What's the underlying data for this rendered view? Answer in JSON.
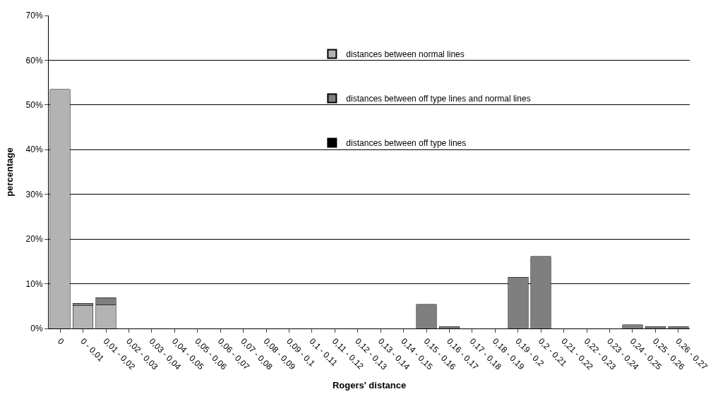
{
  "chart_data": {
    "type": "bar",
    "stacked": true,
    "xlabel": "Rogers' distance",
    "ylabel": "percentage",
    "categories": [
      "0",
      "0 - 0,01",
      "0,01 - 0,02",
      "0,02 - 0,03",
      "0,03 - 0,04",
      "0,04 - 0,05",
      "0,05 - 0,06",
      "0,06 - 0,07",
      "0,07 - 0,08",
      "0,08 - 0,09",
      "0,09 - 0,1",
      "0,1 - 0,11",
      "0,11 - 0,12",
      "0,12 - 0,13",
      "0,13 - 0,14",
      "0,14 - 0,15",
      "0,15 - 0,16",
      "0,16 - 0,17",
      "0,17 - 0,18",
      "0,18 - 0,19",
      "0,19 - 0,2",
      "0,2 - 0,21",
      "0,21 - 0,22",
      "0,22 - 0,23",
      "0,23 - 0,24",
      "0,24 - 0,25",
      "0,25 - 0,26",
      "0,26 - 0,27"
    ],
    "series": [
      {
        "name": "distances between normal lines",
        "color": "#b3b3b3",
        "values": [
          53.5,
          5.1,
          5.3,
          0,
          0,
          0,
          0,
          0,
          0,
          0,
          0,
          0,
          0,
          0,
          0,
          0,
          0,
          0,
          0,
          0,
          0,
          0,
          0,
          0,
          0,
          0,
          0,
          0
        ]
      },
      {
        "name": "distances between off type lines and normal lines",
        "color": "#7f7f7f",
        "values": [
          0,
          0.5,
          1.6,
          0,
          0,
          0,
          0,
          0,
          0,
          0,
          0,
          0,
          0,
          0,
          0,
          0,
          5.4,
          0.4,
          0,
          0,
          11.5,
          16.1,
          0,
          0,
          0,
          0.8,
          0.4,
          0.4
        ]
      },
      {
        "name": "distances between off type lines",
        "color": "#000000",
        "values": [
          0,
          0,
          0,
          0,
          0,
          0,
          0,
          0,
          0,
          0,
          0,
          0,
          0,
          0,
          0,
          0,
          0,
          0,
          0,
          0,
          0,
          0,
          0,
          0,
          0,
          0,
          0,
          0
        ]
      }
    ],
    "ylim": [
      0,
      70
    ],
    "yticks": [
      {
        "value": 0,
        "label": "0%"
      },
      {
        "value": 10,
        "label": "10%"
      },
      {
        "value": 20,
        "label": "20%"
      },
      {
        "value": 30,
        "label": "30%"
      },
      {
        "value": 40,
        "label": "40%"
      },
      {
        "value": 50,
        "label": "50%"
      },
      {
        "value": 60,
        "label": "60%"
      },
      {
        "value": 70,
        "label": "70%"
      }
    ],
    "grid": "y",
    "legend": "top"
  }
}
